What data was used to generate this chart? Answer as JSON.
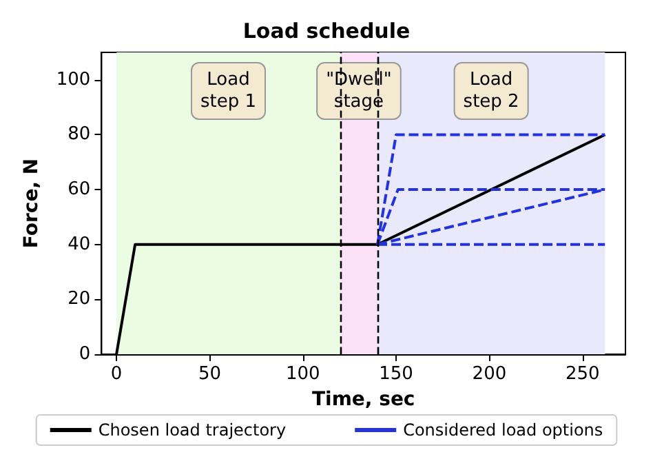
{
  "chart_data": {
    "type": "line",
    "title": "Load schedule",
    "xlabel": "Time, sec",
    "ylabel": "Force, N",
    "xlim": [
      -8,
      273
    ],
    "xticks": [
      0,
      50,
      100,
      150,
      200,
      250
    ],
    "ylim": [
      0,
      110
    ],
    "yticks": [
      0,
      20,
      40,
      60,
      80,
      100
    ],
    "grid": false,
    "legend": "bottom",
    "marker": "none",
    "series": [
      {
        "name": "Chosen load trajectory",
        "color": "#000000",
        "line_style": "solid",
        "x": [
          0,
          10,
          140,
          262
        ],
        "values": [
          0,
          40,
          40,
          80
        ]
      },
      {
        "name": "Considered load options",
        "color": "#2233dd",
        "line_style": "dashed",
        "x": [
          140,
          150,
          262
        ],
        "values": [
          40,
          80,
          80
        ]
      },
      {
        "color": "#2233dd",
        "line_style": "dashed",
        "x": [
          140,
          151,
          262
        ],
        "values": [
          40,
          60,
          60
        ]
      },
      {
        "color": "#2233dd",
        "line_style": "dashed",
        "x": [
          140,
          262
        ],
        "values": [
          40,
          60
        ]
      },
      {
        "color": "#2233dd",
        "line_style": "dashed",
        "x": [
          140,
          262
        ],
        "values": [
          40,
          40
        ]
      }
    ],
    "bands": [
      {
        "axis": "x",
        "from": 0,
        "to": 120,
        "label": "Load\nstep 1",
        "color": "#eafde2"
      },
      {
        "axis": "x",
        "from": 120,
        "to": 140,
        "label": "\"Dwell\"\nstage",
        "color": "#fce1f8"
      },
      {
        "axis": "x",
        "from": 140,
        "to": 262,
        "label": "Load\nstep 2",
        "color": "#e9e9fb"
      }
    ],
    "ref_lines": [
      {
        "axis": "x",
        "value": 120,
        "color": "#000000",
        "line_style": "dashed"
      },
      {
        "axis": "x",
        "value": 140,
        "color": "#000000",
        "line_style": "dashed"
      }
    ]
  }
}
